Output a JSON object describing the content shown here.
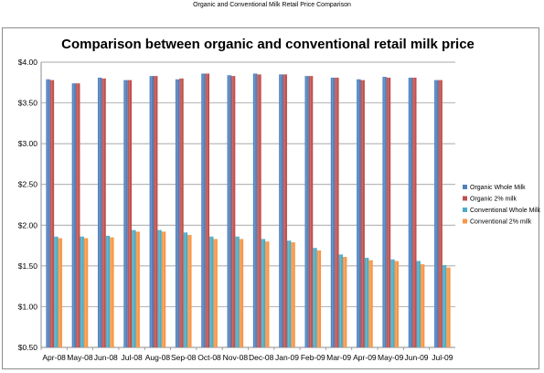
{
  "page_header": "Organic and Conventional Milk Retail Price Comparison",
  "chart_data": {
    "type": "bar",
    "title": "Comparison between organic and conventional retail milk price",
    "xlabel": "",
    "ylabel": "",
    "ylim": [
      0.5,
      4.0
    ],
    "yticks": [
      "$0.50",
      "$1.00",
      "$1.50",
      "$2.00",
      "$2.50",
      "$3.00",
      "$3.50",
      "$4.00"
    ],
    "ytick_values": [
      0.5,
      1.0,
      1.5,
      2.0,
      2.5,
      3.0,
      3.5,
      4.0
    ],
    "grid": true,
    "legend_position": "right",
    "categories": [
      "Apr-08",
      "May-08",
      "Jun-08",
      "Jul-08",
      "Aug-08",
      "Sep-08",
      "Oct-08",
      "Nov-08",
      "Dec-08",
      "Jan-09",
      "Feb-09",
      "Mar-09",
      "Apr-09",
      "May-09",
      "Jun-09",
      "Jul-09"
    ],
    "series": [
      {
        "name": "Organic Whole Milk",
        "color": "#4f81bd",
        "values": [
          3.79,
          3.74,
          3.81,
          3.78,
          3.83,
          3.79,
          3.86,
          3.84,
          3.86,
          3.85,
          3.83,
          3.81,
          3.79,
          3.82,
          3.81,
          3.78
        ]
      },
      {
        "name": "Organic 2% milk",
        "color": "#c0504d",
        "values": [
          3.78,
          3.74,
          3.8,
          3.78,
          3.83,
          3.8,
          3.86,
          3.83,
          3.85,
          3.85,
          3.83,
          3.81,
          3.78,
          3.81,
          3.81,
          3.78
        ]
      },
      {
        "name": "Conventional Whole Milk",
        "color": "#4bacc6",
        "values": [
          1.86,
          1.86,
          1.87,
          1.94,
          1.94,
          1.91,
          1.86,
          1.86,
          1.83,
          1.81,
          1.72,
          1.64,
          1.6,
          1.58,
          1.56,
          1.51
        ]
      },
      {
        "name": "Conventional 2% milk",
        "color": "#f79646",
        "values": [
          1.84,
          1.84,
          1.85,
          1.92,
          1.92,
          1.88,
          1.83,
          1.83,
          1.8,
          1.79,
          1.69,
          1.61,
          1.57,
          1.56,
          1.52,
          1.48
        ]
      }
    ]
  }
}
